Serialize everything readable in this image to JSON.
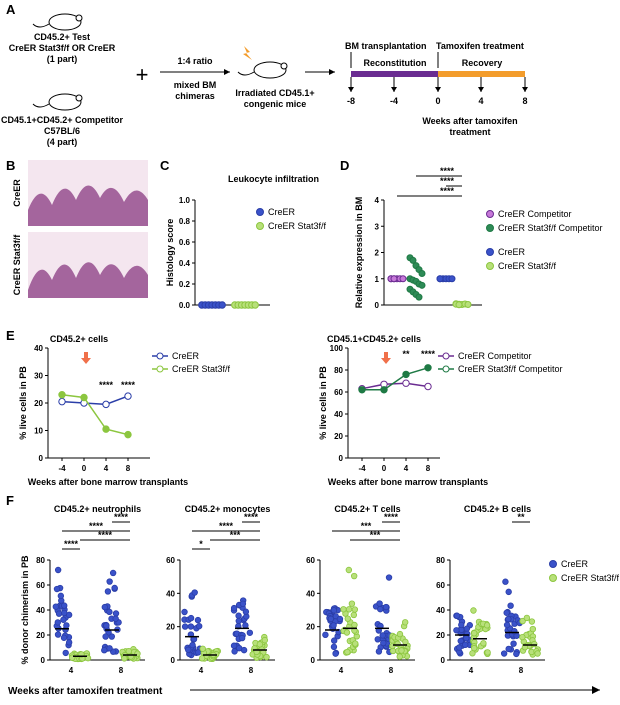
{
  "colors": {
    "blue": "#2b3ea8",
    "green": "#8cc63f",
    "purple": "#6a2c91",
    "purpleFill": "#c678d8",
    "darkgreen": "#1f7a45",
    "orange": "#f39c2b",
    "arrow": "#f0704a",
    "blueFill": "#3a52c9",
    "greenFill": "#b8e07a",
    "tealFill": "#2e8b57"
  },
  "panelA": {
    "letter": "A",
    "test": [
      "CD45.2+ Test",
      "CreER Stat3f/f OR CreER",
      "(1 part)"
    ],
    "competitor": [
      "CD45.1+CD45.2+ Competitor",
      "C57BL/6",
      "(4 part)"
    ],
    "ratio": "1:4 ratio",
    "chimera": [
      "mixed BM",
      "chimeras"
    ],
    "irradiated": [
      "Irradiated CD45.1+",
      "congenic mice"
    ],
    "bm_transplant": "BM transplantation",
    "tamoxifen": "Tamoxifen treatment",
    "reconstitution": "Reconstitution",
    "recovery": "Recovery",
    "ticks": [
      "-8",
      "-4",
      "0",
      "4",
      "8"
    ],
    "axis_caption": [
      "Weeks after tamoxifen",
      "treatment"
    ]
  },
  "panelB": {
    "letter": "B",
    "row1": "CreER",
    "row2": "CreER Stat3f/f"
  },
  "chart_data": [
    {
      "panel": "C",
      "type": "scatter",
      "title": "Leukocyte infiltration",
      "ylabel": "Histology score",
      "ylim": [
        0,
        1.0
      ],
      "yticks": [
        "0.0",
        "0.2",
        "0.4",
        "0.6",
        "0.8",
        "1.0"
      ],
      "legend": [
        "CreER",
        "CreER Stat3f/f"
      ],
      "series": [
        {
          "name": "CreER",
          "values": [
            0,
            0,
            0,
            0,
            0,
            0,
            0
          ]
        },
        {
          "name": "CreER Stat3f/f",
          "values": [
            0,
            0,
            0,
            0,
            0,
            0,
            0
          ]
        }
      ]
    },
    {
      "panel": "D",
      "type": "scatter",
      "ylabel": "Relative expression in BM",
      "ylim": [
        0,
        4
      ],
      "yticks": [
        "0",
        "1",
        "2",
        "3",
        "4"
      ],
      "legend": [
        "CreER Competitor",
        "CreER Stat3f/f Competitor",
        "CreER",
        "CreER Stat3f/f"
      ],
      "significance": [
        "****",
        "****",
        "****"
      ],
      "series": [
        {
          "name": "CreER Competitor",
          "values": [
            1,
            1,
            1,
            1,
            1,
            1,
            1
          ]
        },
        {
          "name": "CreER Stat3f/f Competitor",
          "values": [
            1.8,
            1.7,
            1.5,
            1.35,
            1.2,
            1.0,
            0.95,
            0.9,
            0.8,
            0.75,
            0.6,
            0.5,
            0.4,
            0.3
          ]
        },
        {
          "name": "CreER",
          "values": [
            1,
            1,
            1,
            1,
            1,
            1
          ]
        },
        {
          "name": "CreER Stat3f/f",
          "values": [
            0.05,
            0.03,
            0.02,
            0.04,
            0.02,
            0.03,
            0.01
          ]
        }
      ]
    },
    {
      "panel": "E1",
      "type": "line",
      "title": "CD45.2+ cells",
      "ylabel": "% live cells in PB",
      "xlabel": "Weeks after bone marrow transplants",
      "x": [
        -4,
        0,
        4,
        8
      ],
      "ylim": [
        0,
        40
      ],
      "yticks": [
        "0",
        "10",
        "20",
        "30",
        "40"
      ],
      "xticks": [
        "-4",
        "0",
        "4",
        "8"
      ],
      "legend": [
        "CreER",
        "CreER Stat3f/f"
      ],
      "significance": [
        "****",
        "****"
      ],
      "series": [
        {
          "name": "CreER",
          "values": [
            20.5,
            20,
            19.5,
            22.5
          ]
        },
        {
          "name": "CreER Stat3f/f",
          "values": [
            23,
            22,
            10.5,
            8.5
          ]
        }
      ]
    },
    {
      "panel": "E2",
      "type": "line",
      "title": "CD45.1+CD45.2+ cells",
      "ylabel": "% live cells in PB",
      "xlabel": "Weeks after bone marrow transplants",
      "x": [
        -4,
        0,
        4,
        8
      ],
      "ylim": [
        0,
        100
      ],
      "yticks": [
        "0",
        "20",
        "40",
        "60",
        "80",
        "100"
      ],
      "xticks": [
        "-4",
        "0",
        "4",
        "8"
      ],
      "legend": [
        "CreER Competitor",
        "CreER Stat3f/f Competitor"
      ],
      "significance": [
        "**",
        "****"
      ],
      "series": [
        {
          "name": "CreER Competitor",
          "values": [
            63,
            67,
            68,
            65
          ]
        },
        {
          "name": "CreER Stat3f/f Competitor",
          "values": [
            62,
            62,
            76,
            82
          ]
        }
      ]
    },
    {
      "panel": "F1",
      "type": "scatter",
      "title": "CD45.2+ neutrophils",
      "ylabel": "% donor chimerism in PB",
      "ylim": [
        0,
        80
      ],
      "yticks": [
        "0",
        "20",
        "40",
        "60",
        "80"
      ],
      "xticks": [
        "4",
        "8"
      ],
      "significance": [
        "****",
        "****",
        "****",
        "****"
      ],
      "means": [
        25,
        3,
        24,
        4
      ]
    },
    {
      "panel": "F2",
      "type": "scatter",
      "title": "CD45.2+  monocytes",
      "ylim": [
        0,
        60
      ],
      "yticks": [
        "0",
        "20",
        "40",
        "60"
      ],
      "xticks": [
        "4",
        "8"
      ],
      "significance": [
        "****",
        "****",
        "***",
        "*"
      ],
      "means": [
        14,
        3,
        19,
        6
      ]
    },
    {
      "panel": "F3",
      "type": "scatter",
      "title": "CD45.2+  T cells",
      "ylim": [
        0,
        60
      ],
      "yticks": [
        "0",
        "20",
        "40",
        "60"
      ],
      "xticks": [
        "4",
        "8"
      ],
      "significance": [
        "****",
        "***",
        "***"
      ],
      "means": [
        18,
        19,
        19,
        9
      ]
    },
    {
      "panel": "F4",
      "type": "scatter",
      "title": "CD45.2+  B cells",
      "ylim": [
        0,
        80
      ],
      "yticks": [
        "0",
        "20",
        "40",
        "60",
        "80"
      ],
      "xticks": [
        "4",
        "8"
      ],
      "significance": [
        "**"
      ],
      "legend": [
        "CreER",
        "CreER Stat3f/f"
      ],
      "means": [
        20,
        17,
        22,
        12
      ]
    }
  ],
  "panelF": {
    "letter": "F",
    "xcaption": "Weeks after tamoxifen treatment"
  },
  "panelLetters": {
    "C": "C",
    "D": "D",
    "E": "E"
  }
}
